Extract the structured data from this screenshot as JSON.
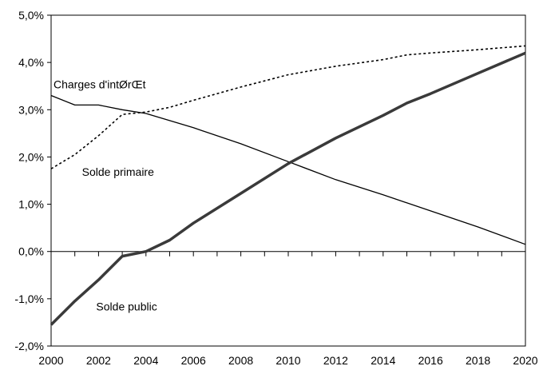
{
  "chart_data": {
    "type": "line",
    "title": "",
    "xlabel": "",
    "ylabel": "",
    "xlim": [
      2000,
      2020
    ],
    "ylim": [
      -2.0,
      5.0
    ],
    "x_ticks": [
      "2000",
      "2002",
      "2004",
      "2006",
      "2008",
      "2010",
      "2012",
      "2014",
      "2016",
      "2018",
      "2020"
    ],
    "y_ticks": [
      "-2,0%",
      "-1,0%",
      "0,0%",
      "1,0%",
      "2,0%",
      "3,0%",
      "4,0%",
      "5,0%"
    ],
    "grid": false,
    "series": [
      {
        "name": "Charges d'intØrŒt",
        "style": "solid-thin",
        "color": "#000000",
        "x": [
          2000,
          2001,
          2002,
          2003,
          2004,
          2006,
          2008,
          2010,
          2012,
          2014,
          2016,
          2018,
          2020
        ],
        "y": [
          3.3,
          3.1,
          3.1,
          3.0,
          2.92,
          2.62,
          2.28,
          1.9,
          1.52,
          1.2,
          0.86,
          0.52,
          0.15
        ]
      },
      {
        "name": "Solde primaire",
        "style": "dotted",
        "color": "#000000",
        "x": [
          2000,
          2001,
          2002,
          2003,
          2004,
          2005,
          2006,
          2008,
          2010,
          2012,
          2014,
          2015,
          2016,
          2018,
          2020
        ],
        "y": [
          1.75,
          2.05,
          2.45,
          2.9,
          2.95,
          3.05,
          3.2,
          3.48,
          3.74,
          3.92,
          4.06,
          4.16,
          4.2,
          4.27,
          4.35
        ]
      },
      {
        "name": "Solde public",
        "style": "solid-thick",
        "color": "#3a3a3a",
        "x": [
          2000,
          2001,
          2002,
          2003,
          2004,
          2005,
          2006,
          2008,
          2010,
          2012,
          2014,
          2015,
          2016,
          2018,
          2020
        ],
        "y": [
          -1.55,
          -1.05,
          -0.6,
          -0.1,
          0.0,
          0.24,
          0.6,
          1.23,
          1.86,
          2.4,
          2.88,
          3.14,
          3.34,
          3.77,
          4.2
        ]
      }
    ],
    "annotations": [
      {
        "text": "Charges d'intØrŒt",
        "anchor_x": 2000.1,
        "anchor_y": 3.45
      },
      {
        "text": "Solde primaire",
        "anchor_x": 2001.3,
        "anchor_y": 1.6
      },
      {
        "text": "Solde public",
        "anchor_x": 2001.9,
        "anchor_y": -1.25
      }
    ]
  }
}
